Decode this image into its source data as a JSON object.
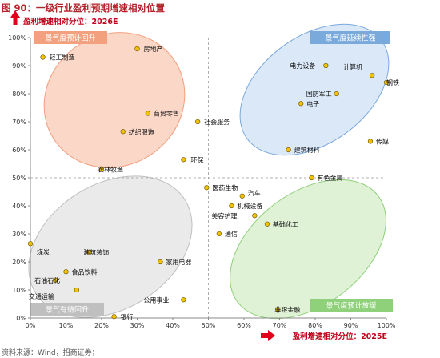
{
  "figure_title": "图 90：一级行业盈利预期增速相对位置",
  "source_note": "资料来源：Wind，招商证券；",
  "chart_data": {
    "type": "scatter",
    "xlabel": "盈利增速相对分位：2025E",
    "ylabel": "盈利增速相对分位：2026E",
    "xlim": [
      0,
      1
    ],
    "ylim": [
      0,
      1
    ],
    "x_ticks": [
      "0%",
      "10%",
      "20%",
      "30%",
      "40%",
      "50%",
      "60%",
      "70%",
      "80%",
      "90%",
      "100%"
    ],
    "y_ticks": [
      "0%",
      "10%",
      "20%",
      "30%",
      "40%",
      "50%",
      "60%",
      "70%",
      "80%",
      "90%",
      "100%"
    ],
    "grid": false,
    "reference_lines": {
      "x": 0.5,
      "y": 0.5
    },
    "marker_color": "#f2c200",
    "zones": [
      {
        "label": "景气度预计回升",
        "color": "#f5b699",
        "label_color": "#f2a07e"
      },
      {
        "label": "景气度延续性强",
        "color": "#bcd6f2",
        "label_color": "#7aa9dc"
      },
      {
        "label": "景气有待回升",
        "color": "#d9d9d9",
        "label_color": "#bfbfbf"
      },
      {
        "label": "景气度预计放缓",
        "color": "#c5e8b4",
        "label_color": "#8fd07a"
      }
    ],
    "points": [
      {
        "name": "轻工制造",
        "x": 0.035,
        "y": 0.93
      },
      {
        "name": "房地产",
        "x": 0.3,
        "y": 0.96
      },
      {
        "name": "商贸零售",
        "x": 0.33,
        "y": 0.73
      },
      {
        "name": "社会服务",
        "x": 0.47,
        "y": 0.7
      },
      {
        "name": "纺织服饰",
        "x": 0.26,
        "y": 0.665
      },
      {
        "name": "环保",
        "x": 0.43,
        "y": 0.565
      },
      {
        "name": "农林牧渔",
        "x": 0.2,
        "y": 0.53
      },
      {
        "name": "电力设备",
        "x": 0.83,
        "y": 0.9
      },
      {
        "name": "计算机",
        "x": 0.96,
        "y": 0.865
      },
      {
        "name": "钢铁",
        "x": 1.0,
        "y": 0.84
      },
      {
        "name": "国防军工",
        "x": 0.86,
        "y": 0.8
      },
      {
        "name": "电子",
        "x": 0.76,
        "y": 0.765
      },
      {
        "name": "传媒",
        "x": 0.955,
        "y": 0.63
      },
      {
        "name": "建筑材料",
        "x": 0.725,
        "y": 0.6
      },
      {
        "name": "有色金属",
        "x": 0.79,
        "y": 0.5
      },
      {
        "name": "医药生物",
        "x": 0.495,
        "y": 0.465
      },
      {
        "name": "汽车",
        "x": 0.595,
        "y": 0.435
      },
      {
        "name": "机械设备",
        "x": 0.565,
        "y": 0.4
      },
      {
        "name": "美容护理",
        "x": 0.63,
        "y": 0.365
      },
      {
        "name": "基础化工",
        "x": 0.665,
        "y": 0.335
      },
      {
        "name": "通信",
        "x": 0.53,
        "y": 0.3
      },
      {
        "name": "煤炭",
        "x": 0.0,
        "y": 0.265
      },
      {
        "name": "建筑装饰",
        "x": 0.165,
        "y": 0.235
      },
      {
        "name": "家用电器",
        "x": 0.365,
        "y": 0.2
      },
      {
        "name": "食品饮料",
        "x": 0.1,
        "y": 0.165
      },
      {
        "name": "石油石化",
        "x": 0.07,
        "y": 0.135
      },
      {
        "name": "交通运输",
        "x": 0.13,
        "y": 0.1
      },
      {
        "name": "公用事业",
        "x": 0.43,
        "y": 0.065
      },
      {
        "name": "非银金融",
        "x": 0.695,
        "y": 0.03
      },
      {
        "name": "银行",
        "x": 0.235,
        "y": 0.005
      }
    ]
  }
}
